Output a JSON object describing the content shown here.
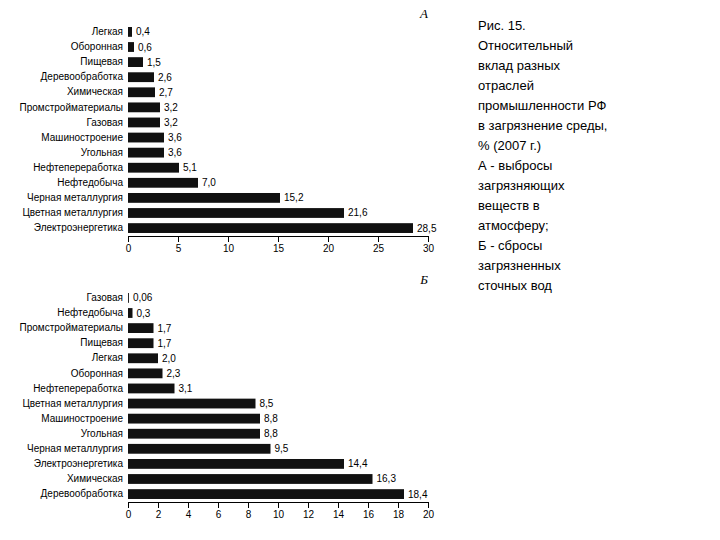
{
  "chart_data": [
    {
      "type": "bar",
      "orientation": "horizontal",
      "title": "А",
      "categories": [
        "Легкая",
        "Оборонная",
        "Пищевая",
        "Деревообработка",
        "Химическая",
        "Промстройматериалы",
        "Газовая",
        "Машиностроение",
        "Угольная",
        "Нефтепереработка",
        "Нефтедобыча",
        "Черная металлургия",
        "Цветная металлургия",
        "Электроэнергетика"
      ],
      "values": [
        0.4,
        0.6,
        1.5,
        2.6,
        2.7,
        3.2,
        3.2,
        3.6,
        3.6,
        5.1,
        7.0,
        15.2,
        21.6,
        28.5
      ],
      "value_labels": [
        "0,4",
        "0,6",
        "1,5",
        "2,6",
        "2,7",
        "3,2",
        "3,2",
        "3,6",
        "3,6",
        "5,1",
        "7,0",
        "15,2",
        "21,6",
        "28,5"
      ],
      "data_labels": true,
      "color": "#111111",
      "xlim": [
        0,
        30
      ],
      "xticks": [
        0,
        5,
        10,
        15,
        20,
        25,
        30
      ],
      "grid": false,
      "annotations": [
        "Рис. 15.",
        "Относительный",
        "вклад разных",
        "отраслей",
        "промышленности РФ",
        "в загрязнение среды,",
        "% (2007 г.)",
        "А - выбросы",
        "загрязняющих",
        "веществ в",
        "атмосферу;",
        "Б - сбросы",
        "загрязненных",
        "сточных вод"
      ]
    },
    {
      "type": "bar",
      "orientation": "horizontal",
      "title": "Б",
      "categories": [
        "Газовая",
        "Нефтедобыча",
        "Промстройматериалы",
        "Пищевая",
        "Легкая",
        "Оборонная",
        "Нефтепереработка",
        "Цветная металлургия",
        "Машиностроение",
        "Угольная",
        "Черная металлургия",
        "Электроэнергетика",
        "Химическая",
        "Деревообработка"
      ],
      "values": [
        0.06,
        0.3,
        1.7,
        1.7,
        2.0,
        2.3,
        3.1,
        8.5,
        8.8,
        8.8,
        9.5,
        14.4,
        16.3,
        18.4
      ],
      "value_labels": [
        "0,06",
        "0,3",
        "1,7",
        "1,7",
        "2,0",
        "2,3",
        "3,1",
        "8,5",
        "8,8",
        "8,8",
        "9,5",
        "14,4",
        "16,3",
        "18,4"
      ],
      "data_labels": true,
      "color": "#111111",
      "xlim": [
        0,
        20
      ],
      "xticks": [
        0,
        2,
        4,
        6,
        8,
        10,
        12,
        14,
        16,
        18,
        20
      ],
      "grid": false
    }
  ]
}
